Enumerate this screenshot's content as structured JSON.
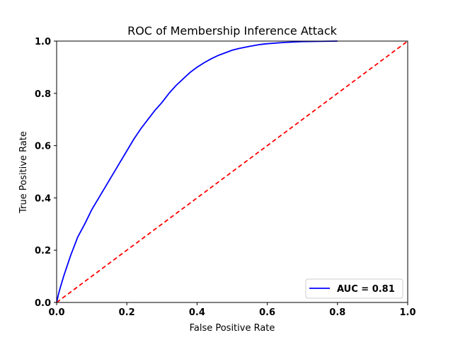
{
  "chart_data": {
    "type": "line",
    "title": "ROC of Membership Inference Attack",
    "xlabel": "False Positive Rate",
    "ylabel": "True Positive Rate",
    "xlim": [
      0.0,
      1.0
    ],
    "ylim": [
      0.0,
      1.0
    ],
    "xticks": [
      "0.0",
      "0.2",
      "0.4",
      "0.6",
      "0.8",
      "1.0"
    ],
    "yticks": [
      "0.0",
      "0.2",
      "0.4",
      "0.6",
      "0.8",
      "1.0"
    ],
    "grid": false,
    "legend_position": "lower-right",
    "series": [
      {
        "name": "AUC = 0.81",
        "color": "#0000ff",
        "style": "solid",
        "x": [
          0.0,
          0.005,
          0.01,
          0.02,
          0.03,
          0.04,
          0.05,
          0.06,
          0.08,
          0.1,
          0.12,
          0.14,
          0.16,
          0.18,
          0.2,
          0.22,
          0.24,
          0.26,
          0.28,
          0.3,
          0.32,
          0.34,
          0.36,
          0.38,
          0.4,
          0.42,
          0.44,
          0.46,
          0.48,
          0.5,
          0.52,
          0.55,
          0.58,
          0.6,
          0.65,
          0.7,
          0.75,
          0.8
        ],
        "y": [
          0.0,
          0.03,
          0.055,
          0.1,
          0.14,
          0.18,
          0.215,
          0.25,
          0.3,
          0.355,
          0.4,
          0.445,
          0.49,
          0.535,
          0.58,
          0.625,
          0.665,
          0.7,
          0.735,
          0.765,
          0.8,
          0.83,
          0.855,
          0.88,
          0.9,
          0.917,
          0.932,
          0.945,
          0.955,
          0.965,
          0.972,
          0.98,
          0.987,
          0.99,
          0.995,
          0.998,
          0.999,
          1.0
        ]
      },
      {
        "color": "#ff0000",
        "style": "dashed",
        "x": [
          0.0,
          1.0
        ],
        "y": [
          0.0,
          1.0
        ]
      }
    ]
  }
}
